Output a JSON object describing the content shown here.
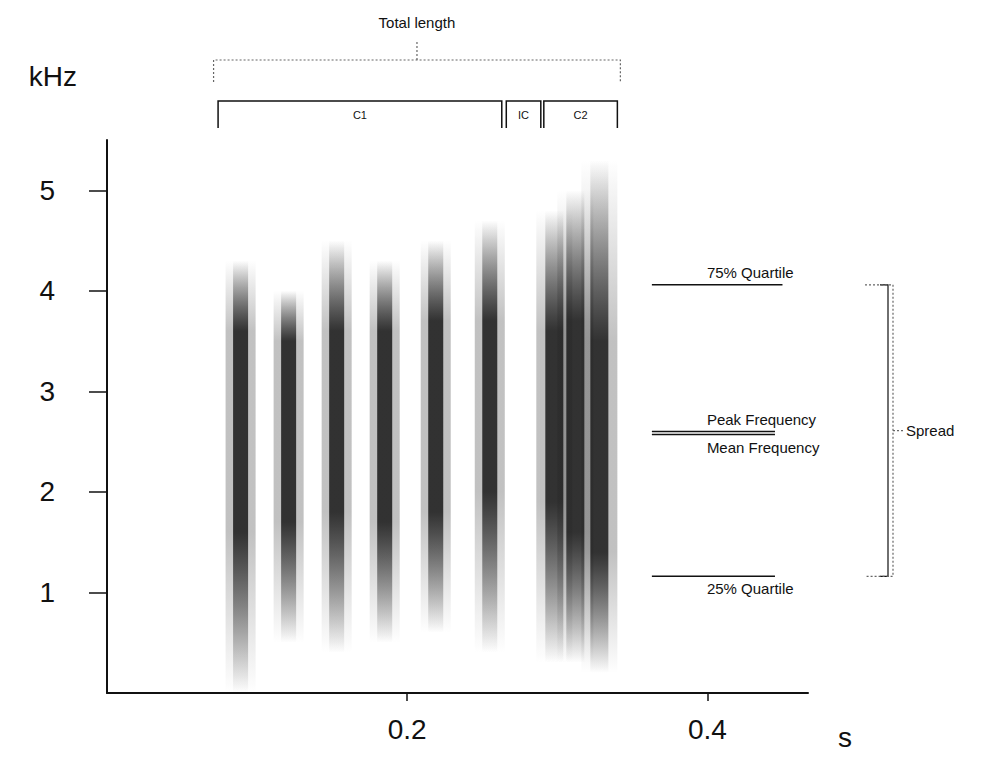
{
  "chart_data": {
    "type": "spectrogram",
    "x_label": "s",
    "y_label": "kHz",
    "xlim": [
      0,
      0.467
    ],
    "xticks": [
      0.2,
      0.4
    ],
    "ylim": [
      0,
      5.5
    ],
    "yticks": [
      1,
      2,
      3,
      4,
      5
    ],
    "color": "#222222",
    "notes": [
      {
        "time": 0.089,
        "duration": 0.01,
        "core": [
          1.6,
          3.6
        ],
        "extent": [
          0.0,
          4.3
        ]
      },
      {
        "time": 0.121,
        "duration": 0.01,
        "core": [
          1.7,
          3.5
        ],
        "extent": [
          0.5,
          4.0
        ]
      },
      {
        "time": 0.153,
        "duration": 0.01,
        "core": [
          1.8,
          3.6
        ],
        "extent": [
          0.4,
          4.5
        ]
      },
      {
        "time": 0.185,
        "duration": 0.01,
        "core": [
          1.7,
          3.6
        ],
        "extent": [
          0.5,
          4.3
        ]
      },
      {
        "time": 0.219,
        "duration": 0.01,
        "core": [
          1.8,
          3.7
        ],
        "extent": [
          0.6,
          4.5
        ]
      },
      {
        "time": 0.255,
        "duration": 0.01,
        "core": [
          2.0,
          3.7
        ],
        "extent": [
          0.4,
          4.7
        ]
      },
      {
        "time": 0.298,
        "duration": 0.012,
        "core": [
          1.9,
          3.6
        ],
        "extent": [
          0.3,
          4.8
        ]
      },
      {
        "time": 0.312,
        "duration": 0.012,
        "core": [
          1.6,
          3.7
        ],
        "extent": [
          0.3,
          5.0
        ]
      },
      {
        "time": 0.328,
        "duration": 0.012,
        "core": [
          1.4,
          3.5
        ],
        "extent": [
          0.2,
          5.3
        ]
      }
    ],
    "brackets": [
      {
        "label": "Total length",
        "span": [
          0.071,
          0.342
        ],
        "line_style": "dotted"
      },
      {
        "label": "C1",
        "span": [
          0.074,
          0.263
        ],
        "line_style": "solid"
      },
      {
        "label": "IC",
        "span": [
          0.266,
          0.289
        ],
        "line_style": "solid"
      },
      {
        "label": "C2",
        "span": [
          0.291,
          0.34
        ],
        "line_style": "solid"
      }
    ],
    "frequency_lines": [
      {
        "label": "75% Quartile",
        "value": 4.06,
        "span": [
          0.363,
          0.45
        ]
      },
      {
        "label": "Peak Frequency",
        "value": 2.6,
        "span": [
          0.363,
          0.445
        ]
      },
      {
        "label": "Mean Frequency",
        "value": 2.57,
        "span": [
          0.363,
          0.445
        ]
      },
      {
        "label": "25% Quartile",
        "value": 1.16,
        "span": [
          0.363,
          0.445
        ]
      }
    ],
    "spread_label": "Spread"
  }
}
